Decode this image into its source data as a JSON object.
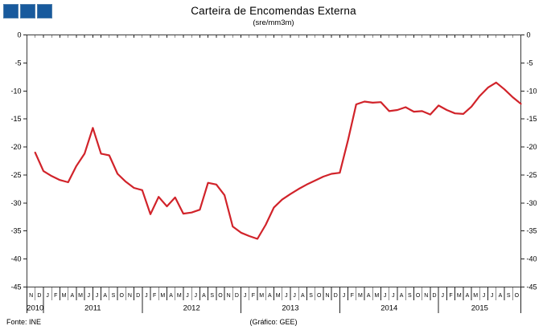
{
  "logo": {
    "square_count": 3,
    "color": "#185a9d"
  },
  "header": {
    "title": "Carteira de Encomendas  Externa",
    "subtitle": "(sre/mm3m)"
  },
  "footer": {
    "source": "Fonte:  INE",
    "credit": "(Gráfico:  GEE)"
  },
  "chart_data": {
    "type": "line",
    "title": "Carteira de Encomendas  Externa",
    "subtitle": "(sre/mm3m)",
    "line_color": "#d1232a",
    "grid": false,
    "legend": "none",
    "ylim": [
      -45,
      0
    ],
    "yticks": [
      0,
      -5,
      -10,
      -15,
      -20,
      -25,
      -30,
      -35,
      -40,
      -45
    ],
    "ylabel": "",
    "xlabel": "",
    "x_months": [
      "N",
      "D",
      "J",
      "F",
      "M",
      "A",
      "M",
      "J",
      "J",
      "A",
      "S",
      "O",
      "N",
      "D",
      "J",
      "F",
      "M",
      "A",
      "M",
      "J",
      "J",
      "A",
      "S",
      "O",
      "N",
      "D",
      "J",
      "F",
      "M",
      "A",
      "M",
      "J",
      "J",
      "A",
      "S",
      "O",
      "N",
      "D",
      "J",
      "F",
      "M",
      "A",
      "M",
      "J",
      "J",
      "A",
      "S",
      "O",
      "N",
      "D",
      "J",
      "F",
      "M",
      "A",
      "M",
      "J",
      "J",
      "A",
      "S",
      "O"
    ],
    "years": [
      {
        "label": "2010",
        "months": 2
      },
      {
        "label": "2011",
        "months": 12
      },
      {
        "label": "2012",
        "months": 12
      },
      {
        "label": "2013",
        "months": 12
      },
      {
        "label": "2014",
        "months": 12
      },
      {
        "label": "2015",
        "months": 10
      }
    ],
    "values": [
      -21.0,
      -24.3,
      -25.2,
      -25.9,
      -26.3,
      -23.4,
      -21.2,
      -16.6,
      -21.2,
      -21.5,
      -24.8,
      -26.2,
      -27.3,
      -27.7,
      -32.0,
      -28.9,
      -30.6,
      -29.0,
      -31.9,
      -31.7,
      -31.2,
      -26.4,
      -26.7,
      -28.6,
      -34.2,
      -35.3,
      -35.9,
      -36.4,
      -33.9,
      -30.8,
      -29.4,
      -28.4,
      -27.5,
      -26.7,
      -26.0,
      -25.3,
      -24.8,
      -24.6,
      -18.8,
      -12.4,
      -11.9,
      -12.1,
      -12.0,
      -13.6,
      -13.4,
      -12.9,
      -13.7,
      -13.6,
      -14.2,
      -12.6,
      -13.4,
      -14.0,
      -14.1,
      -12.8,
      -10.9,
      -9.4,
      -8.5,
      -9.7,
      -11.1,
      -12.3
    ]
  }
}
